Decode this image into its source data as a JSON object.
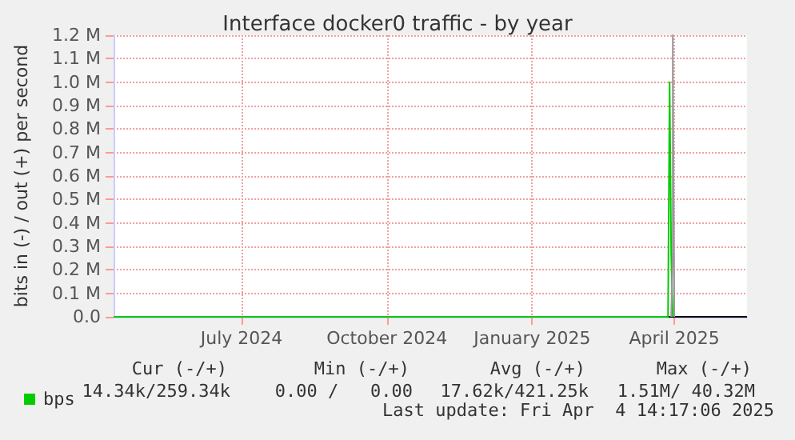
{
  "chart_data": {
    "type": "line",
    "title": "Interface docker0 traffic - by year",
    "ylabel": "bits in (-) / out (+) per second",
    "xlim": [
      "2024-04-11",
      "2025-05-17"
    ],
    "xticks": [
      {
        "value": "2024-07-01",
        "label": "July 2024"
      },
      {
        "value": "2024-10-01",
        "label": "October 2024"
      },
      {
        "value": "2025-01-01",
        "label": "January 2025"
      },
      {
        "value": "2025-04-01",
        "label": "April 2025"
      }
    ],
    "ylim": [
      0,
      1200000
    ],
    "yticks": [
      {
        "value": 0,
        "label": "0.0"
      },
      {
        "value": 100000,
        "label": "0.1 M"
      },
      {
        "value": 200000,
        "label": "0.2 M"
      },
      {
        "value": 300000,
        "label": "0.3 M"
      },
      {
        "value": 400000,
        "label": "0.4 M"
      },
      {
        "value": 500000,
        "label": "0.5 M"
      },
      {
        "value": 600000,
        "label": "0.6 M"
      },
      {
        "value": 700000,
        "label": "0.7 M"
      },
      {
        "value": 800000,
        "label": "0.8 M"
      },
      {
        "value": 900000,
        "label": "0.9 M"
      },
      {
        "value": 1000000,
        "label": "1.0 M"
      },
      {
        "value": 1100000,
        "label": "1.1 M"
      },
      {
        "value": 1200000,
        "label": "1.2 M"
      }
    ],
    "series": [
      {
        "name": "bps",
        "color": "#00cc00",
        "x": [
          "2024-04-11",
          "2025-03-28",
          "2025-03-29",
          "2025-03-30",
          "2025-03-31"
        ],
        "values": [
          0,
          0,
          1000000,
          270000,
          0
        ]
      },
      {
        "color": "#999999",
        "x": [
          "2025-03-30",
          "2025-03-31",
          "2025-03-31",
          "2025-04-01"
        ],
        "values": [
          0,
          270000,
          1200000,
          0
        ]
      }
    ],
    "annotations": [
      "Cur (-/+)",
      "Min (-/+)",
      "Avg (-/+)",
      "Max (-/+)",
      "14.34k/259.34k",
      "0.00 /   0.00",
      "17.62k/421.25k",
      "1.51M/ 40.32M",
      "Last update: Fri Apr  4 14:17:06 2025"
    ],
    "grid": true,
    "legend": "bottom left",
    "marker": "none",
    "line_style": "solid"
  }
}
